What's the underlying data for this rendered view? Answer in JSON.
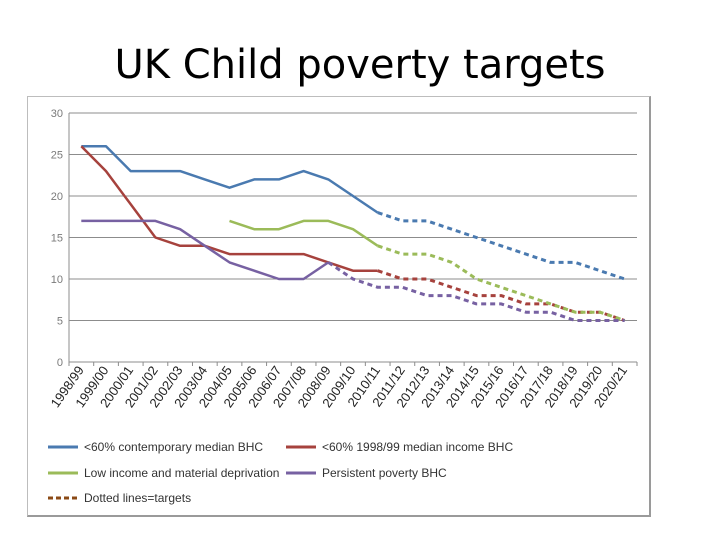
{
  "slide": {
    "title": "UK Child poverty targets"
  },
  "chart_data": {
    "type": "line",
    "categories": [
      "1998/99",
      "1999/00",
      "2000/01",
      "2001/02",
      "2002/03",
      "2003/04",
      "2004/05",
      "2005/06",
      "2006/07",
      "2007/08",
      "2008/09",
      "2009/10",
      "2010/11",
      "2011/12",
      "2012/13",
      "2013/14",
      "2014/15",
      "2015/16",
      "2016/17",
      "2017/18",
      "2018/19",
      "2019/20",
      "2020/21"
    ],
    "ylim": [
      0,
      30
    ],
    "yticks": [
      "0",
      "5",
      "10",
      "15",
      "20",
      "25",
      "30"
    ],
    "grid": true,
    "legend_position": "bottom",
    "series": [
      {
        "name": "<60% contemporary median BHC",
        "color": "#4a7ab0",
        "actual": [
          26,
          26,
          23,
          23,
          23,
          22,
          21,
          22,
          22,
          23,
          22,
          20,
          18,
          null,
          null,
          null,
          null,
          null,
          null,
          null,
          null,
          null,
          null
        ],
        "target": [
          null,
          null,
          null,
          null,
          null,
          null,
          null,
          null,
          null,
          null,
          null,
          null,
          18,
          17,
          17,
          16,
          15,
          14,
          13,
          12,
          12,
          11,
          10
        ]
      },
      {
        "name": "<60% 1998/99 median income BHC",
        "color": "#a6423d",
        "actual": [
          26,
          23,
          19,
          15,
          14,
          14,
          13,
          13,
          13,
          13,
          12,
          11,
          11,
          null,
          null,
          null,
          null,
          null,
          null,
          null,
          null,
          null,
          null
        ],
        "target": [
          null,
          null,
          null,
          null,
          null,
          null,
          null,
          null,
          null,
          null,
          null,
          null,
          11,
          10,
          10,
          9,
          8,
          8,
          7,
          7,
          6,
          6,
          5
        ]
      },
      {
        "name": "Low income and material deprivation",
        "color": "#9bbb59",
        "actual": [
          null,
          null,
          null,
          null,
          null,
          null,
          17,
          16,
          16,
          17,
          17,
          16,
          14,
          null,
          null,
          null,
          null,
          null,
          null,
          null,
          null,
          null,
          null
        ],
        "target": [
          null,
          null,
          null,
          null,
          null,
          null,
          null,
          null,
          null,
          null,
          null,
          null,
          14,
          13,
          13,
          12,
          10,
          9,
          8,
          7,
          6,
          6,
          5
        ]
      },
      {
        "name": "Persistent poverty BHC",
        "color": "#7761a2",
        "actual": [
          17,
          17,
          17,
          17,
          16,
          14,
          12,
          11,
          10,
          10,
          12,
          null,
          null,
          null,
          null,
          null,
          null,
          null,
          null,
          null,
          null,
          null,
          null
        ],
        "target": [
          null,
          null,
          null,
          null,
          null,
          null,
          null,
          null,
          null,
          null,
          12,
          10,
          9,
          9,
          8,
          8,
          7,
          7,
          6,
          6,
          5,
          5,
          5
        ]
      }
    ],
    "target_legend": {
      "name": "Dotted lines=targets",
      "color": "#8b4a16"
    }
  }
}
